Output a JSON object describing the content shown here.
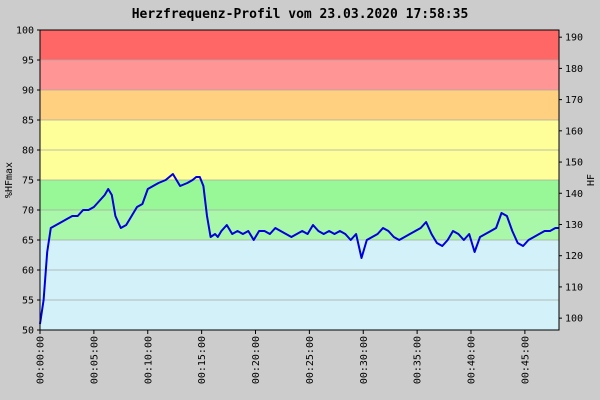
{
  "chart_data": {
    "type": "line",
    "title": "Herzfrequenz-Profil vom 23.03.2020 17:58:35",
    "ylabel_left": "%HFmax",
    "ylabel_right": "HF",
    "ylim_left": [
      50,
      100
    ],
    "yticks_left": [
      "50",
      "55",
      "60",
      "65",
      "70",
      "75",
      "80",
      "85",
      "90",
      "95",
      "100"
    ],
    "ylim_right": [
      96.2,
      192.3
    ],
    "yticks_right": [
      "100",
      "110",
      "120",
      "130",
      "140",
      "150",
      "160",
      "170",
      "180",
      "190"
    ],
    "xlim_seconds": [
      0,
      2890
    ],
    "xticks": [
      "00:00:00",
      "00:05:00",
      "00:10:00",
      "00:15:00",
      "00:20:00",
      "00:25:00",
      "00:30:00",
      "00:35:00",
      "00:40:00",
      "00:45:00"
    ],
    "grid": true,
    "zones": [
      {
        "from": 50,
        "to": 65,
        "color": "#d2f1f8"
      },
      {
        "from": 65,
        "to": 70,
        "color": "#a9f8a9"
      },
      {
        "from": 70,
        "to": 75,
        "color": "#98f898"
      },
      {
        "from": 75,
        "to": 80,
        "color": "#ffff99"
      },
      {
        "from": 80,
        "to": 85,
        "color": "#ffff99"
      },
      {
        "from": 85,
        "to": 90,
        "color": "#ffd080"
      },
      {
        "from": 90,
        "to": 95,
        "color": "#ff9595"
      },
      {
        "from": 95,
        "to": 100,
        "color": "#ff6767"
      }
    ],
    "series": [
      {
        "color": "#0000dd",
        "x": [
          0,
          20,
          40,
          60,
          90,
          120,
          150,
          180,
          210,
          240,
          270,
          300,
          330,
          360,
          380,
          400,
          420,
          450,
          480,
          510,
          540,
          570,
          600,
          630,
          660,
          700,
          740,
          780,
          820,
          850,
          870,
          890,
          910,
          930,
          950,
          975,
          990,
          1010,
          1040,
          1070,
          1100,
          1130,
          1160,
          1190,
          1220,
          1250,
          1280,
          1310,
          1340,
          1370,
          1400,
          1430,
          1460,
          1490,
          1520,
          1550,
          1580,
          1610,
          1640,
          1670,
          1700,
          1730,
          1760,
          1790,
          1820,
          1850,
          1880,
          1910,
          1940,
          1970,
          2000,
          2030,
          2060,
          2090,
          2120,
          2150,
          2180,
          2210,
          2240,
          2270,
          2300,
          2330,
          2360,
          2390,
          2420,
          2450,
          2480,
          2510,
          2540,
          2570,
          2600,
          2630,
          2660,
          2690,
          2720,
          2750,
          2780,
          2810,
          2840,
          2870,
          2890
        ],
        "values": [
          51,
          55,
          63,
          67,
          67.5,
          68,
          68.5,
          69,
          69,
          70,
          70,
          70.5,
          71.5,
          72.5,
          73.5,
          72.5,
          69,
          67,
          67.5,
          69,
          70.5,
          71,
          73.5,
          74,
          74.5,
          75,
          76,
          74,
          74.5,
          75,
          75.5,
          75.5,
          74,
          69,
          65.5,
          66,
          65.5,
          66.5,
          67.5,
          66,
          66.5,
          66,
          66.5,
          65,
          66.5,
          66.5,
          66,
          67,
          66.5,
          66,
          65.5,
          66,
          66.5,
          66,
          67.5,
          66.5,
          66,
          66.5,
          66,
          66.5,
          66,
          65,
          66,
          62,
          65,
          65.5,
          66,
          67,
          66.5,
          65.5,
          65,
          65.5,
          66,
          66.5,
          67,
          68,
          66,
          64.5,
          64,
          65,
          66.5,
          66,
          65,
          66,
          63,
          65.5,
          66,
          66.5,
          67,
          69.5,
          69,
          66.5,
          64.5,
          64,
          65,
          65.5,
          66,
          66.5,
          66.5,
          67,
          67
        ]
      }
    ]
  }
}
